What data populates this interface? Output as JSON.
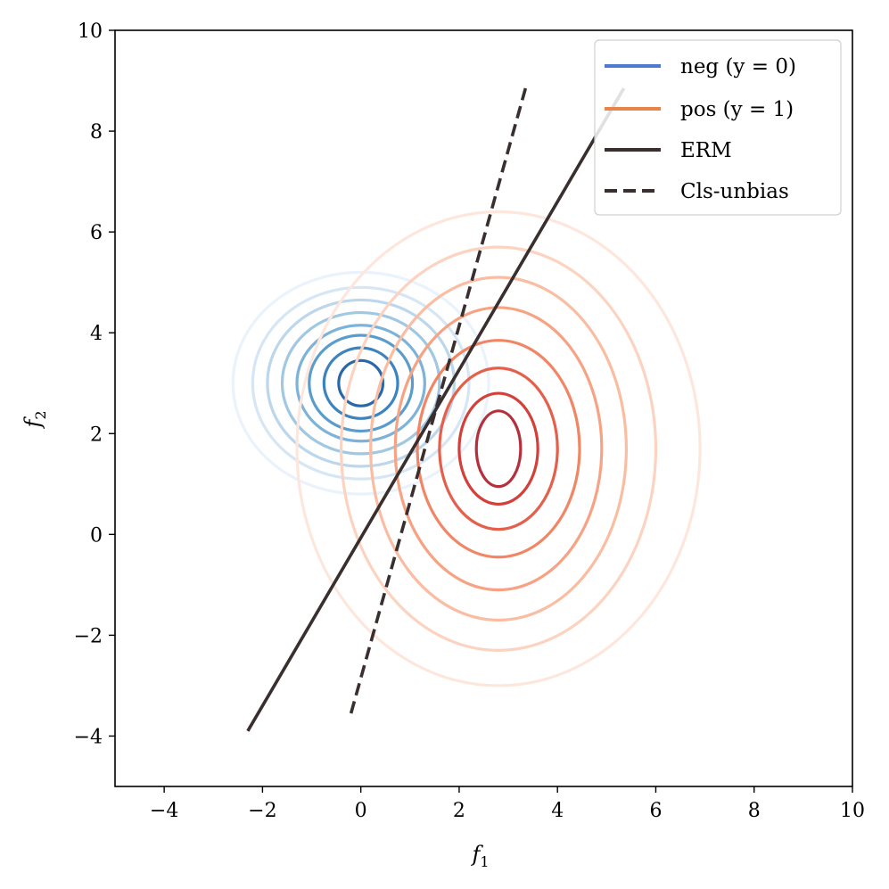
{
  "chart_data": {
    "type": "line",
    "title": "",
    "xlabel": "f",
    "xlabel_sub": "1",
    "ylabel": "f",
    "ylabel_sub": "2",
    "xlim": [
      -5,
      10
    ],
    "ylim": [
      -5,
      10
    ],
    "x_ticks": [
      -4,
      -2,
      0,
      2,
      4,
      6,
      8,
      10
    ],
    "y_ticks": [
      -4,
      -2,
      0,
      2,
      4,
      6,
      8,
      10
    ],
    "x_tick_labels": [
      "−4",
      "−2",
      "0",
      "2",
      "4",
      "6",
      "8",
      "10"
    ],
    "y_tick_labels": [
      "−4",
      "−2",
      "0",
      "2",
      "4",
      "6",
      "8",
      "10"
    ],
    "grid": false,
    "legend_position": "top-right",
    "series": [
      {
        "name": "neg (y = 0)",
        "kind": "kde-contour",
        "color": "#4e79d0",
        "center": [
          0,
          3.0
        ],
        "levels": [
          {
            "rx": 2.6,
            "ry": 2.2,
            "color": "#eaf2fb"
          },
          {
            "rx": 2.2,
            "ry": 1.9,
            "color": "#d6e6f5"
          },
          {
            "rx": 1.9,
            "ry": 1.65,
            "color": "#bcd7ec"
          },
          {
            "rx": 1.6,
            "ry": 1.4,
            "color": "#a0c8e2"
          },
          {
            "rx": 1.3,
            "ry": 1.15,
            "color": "#7eb3d9"
          },
          {
            "rx": 1.05,
            "ry": 0.95,
            "color": "#5a9ccc"
          },
          {
            "rx": 0.75,
            "ry": 0.7,
            "color": "#3d83bd"
          },
          {
            "rx": 0.45,
            "ry": 0.45,
            "color": "#2a67a8"
          }
        ]
      },
      {
        "name": "pos (y = 1)",
        "kind": "kde-contour",
        "color": "#e8834a",
        "center": [
          2.8,
          1.7
        ],
        "levels": [
          {
            "rx": 4.1,
            "ry": 4.7,
            "color": "#fde7dd"
          },
          {
            "rx": 3.2,
            "ry": 4.0,
            "color": "#fcd3c0"
          },
          {
            "rx": 2.6,
            "ry": 3.4,
            "color": "#fbbda2"
          },
          {
            "rx": 2.1,
            "ry": 2.8,
            "color": "#f7a383"
          },
          {
            "rx": 1.65,
            "ry": 2.15,
            "color": "#f28664"
          },
          {
            "rx": 1.2,
            "ry": 1.6,
            "color": "#e5604a"
          },
          {
            "rx": 0.8,
            "ry": 1.1,
            "color": "#d43f3a"
          },
          {
            "rx": 0.45,
            "ry": 0.75,
            "color": "#b5303a"
          }
        ]
      },
      {
        "name": "ERM",
        "kind": "line",
        "color": "#3a2f2f",
        "dash": "solid",
        "x": [
          -2.3,
          5.35
        ],
        "y": [
          -3.9,
          8.85
        ]
      },
      {
        "name": "Cls-unbias",
        "kind": "line",
        "color": "#3a2f2f",
        "dash": "dashed",
        "x": [
          -0.2,
          3.35
        ],
        "y": [
          -3.55,
          8.85
        ]
      }
    ]
  }
}
